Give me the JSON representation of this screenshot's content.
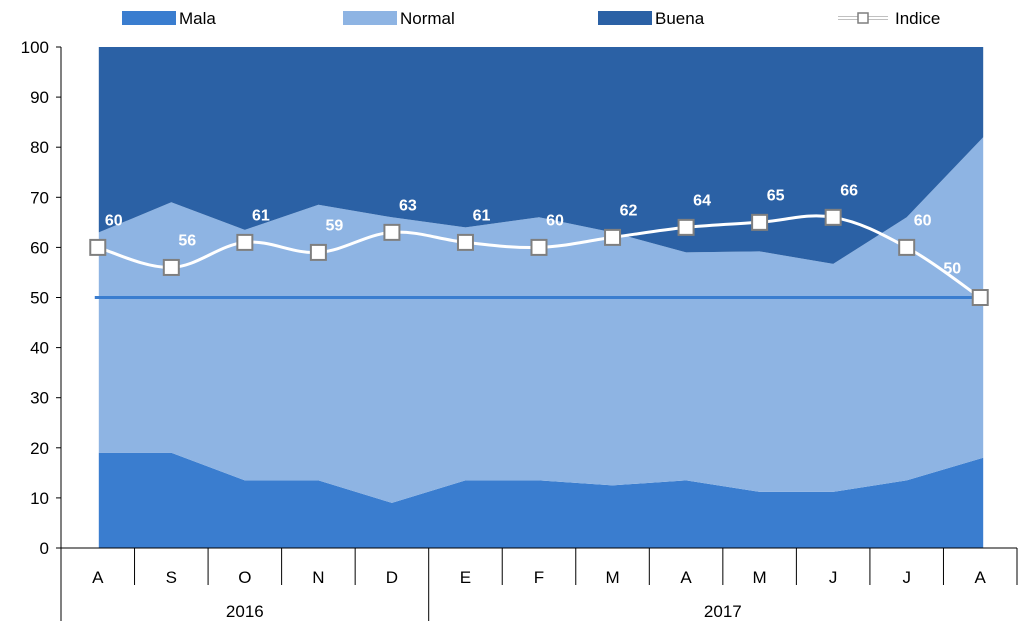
{
  "chart_data": {
    "type": "area",
    "categories": [
      "A",
      "S",
      "O",
      "N",
      "D",
      "E",
      "F",
      "M",
      "A",
      "M",
      "J",
      "J",
      "A"
    ],
    "year_groups": [
      {
        "label": "2016",
        "span": [
          0,
          4
        ]
      },
      {
        "label": "2017",
        "span": [
          5,
          12
        ]
      }
    ],
    "ylim": [
      0,
      100
    ],
    "yticks": [
      "0",
      "10",
      "20",
      "30",
      "40",
      "50",
      "60",
      "70",
      "80",
      "90",
      "100"
    ],
    "legend_position": "top",
    "series": [
      {
        "name": "Mala",
        "type": "stacked-area",
        "color": "#3a7dcf",
        "values": [
          19,
          19,
          13.5,
          13.5,
          9,
          13.5,
          13.5,
          12.5,
          13.5,
          11.2,
          11.2,
          13.5,
          18
        ]
      },
      {
        "name": "Normal",
        "type": "stacked-area",
        "color": "#8eb4e3",
        "values": [
          44,
          50,
          50,
          55,
          57,
          50.5,
          52.5,
          50.5,
          45.5,
          48,
          45.5,
          52.5,
          64
        ]
      },
      {
        "name": "Buena",
        "type": "stacked-area",
        "color": "#2b61a5",
        "values": [
          37,
          31,
          36.5,
          31.5,
          34,
          36,
          34,
          37,
          41,
          40.8,
          43.3,
          34,
          18
        ]
      },
      {
        "name": "Indice",
        "type": "line",
        "color": "#ffffff",
        "values": [
          60,
          56,
          61,
          59,
          63,
          61,
          60,
          62,
          64,
          65,
          66,
          60,
          50
        ],
        "labels": [
          "60",
          "56",
          "61",
          "59",
          "63",
          "61",
          "60",
          "62",
          "64",
          "65",
          "66",
          "60",
          "50"
        ]
      }
    ],
    "reference_line": {
      "value": 50,
      "color": "#3a7dcf"
    }
  }
}
